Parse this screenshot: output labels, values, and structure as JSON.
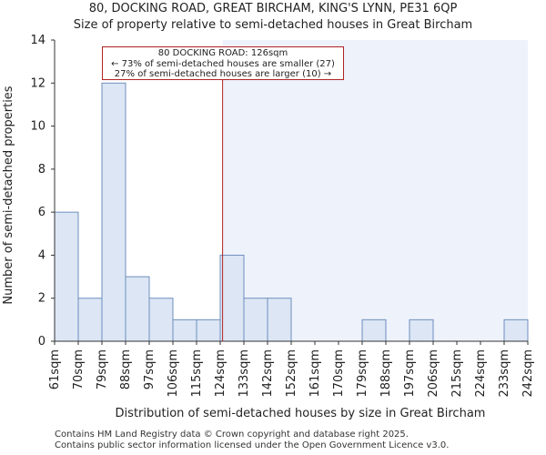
{
  "title_line1": "80, DOCKING ROAD, GREAT BIRCHAM, KING'S LYNN, PE31 6QP",
  "title_line2": "Size of property relative to semi-detached houses in Great Bircham",
  "footer_line1": "Contains HM Land Registry data © Crown copyright and database right 2025.",
  "footer_line2": "Contains public sector information licensed under the Open Government Licence v3.0.",
  "annotation": {
    "line1": "80 DOCKING ROAD: 126sqm",
    "line2": "← 73% of semi-detached houses are smaller (27)",
    "line3": "27% of semi-detached houses are larger (10) →"
  },
  "chart_data": {
    "type": "bar",
    "title": "Size of property relative to semi-detached houses in Great Bircham",
    "xlabel": "Distribution of semi-detached houses by size in Great Bircham",
    "ylabel": "Number of semi-detached properties",
    "bin_edges": [
      "61sqm",
      "70sqm",
      "79sqm",
      "88sqm",
      "97sqm",
      "106sqm",
      "115sqm",
      "124sqm",
      "133sqm",
      "142sqm",
      "152sqm",
      "161sqm",
      "170sqm",
      "179sqm",
      "188sqm",
      "197sqm",
      "206sqm",
      "215sqm",
      "224sqm",
      "233sqm",
      "242sqm"
    ],
    "values": [
      6,
      2,
      12,
      3,
      2,
      1,
      1,
      4,
      2,
      2,
      0,
      0,
      0,
      1,
      0,
      1,
      0,
      0,
      0,
      1
    ],
    "ylim": [
      0,
      14
    ],
    "yticks": [
      0,
      2,
      4,
      6,
      8,
      10,
      12,
      14
    ],
    "property_value_sqm": 126,
    "property_bin_position": 7.1,
    "colors": {
      "bar_fill": "#dce6f4",
      "bar_stroke": "#6e8fbf",
      "highlight_bg": "#eef2fb",
      "marker_line": "#b22222"
    }
  }
}
